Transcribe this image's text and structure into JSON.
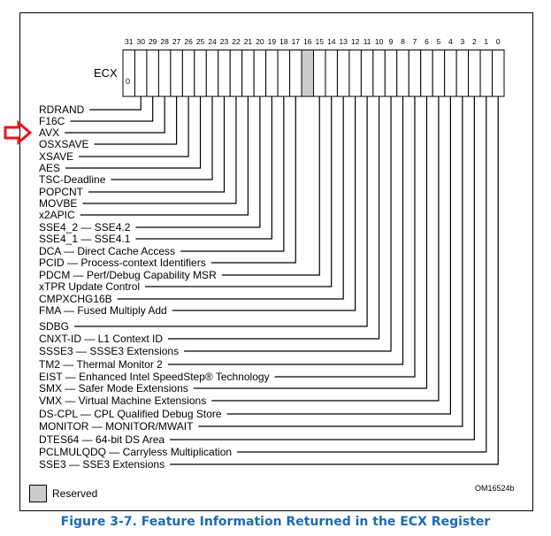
{
  "register": {
    "name": "ECX",
    "bit31_value": "0",
    "reserved_bits": [
      16
    ]
  },
  "bit_numbers": [
    "31",
    "30",
    "29",
    "28",
    "27",
    "26",
    "25",
    "24",
    "23",
    "22",
    "21",
    "20",
    "19",
    "18",
    "17",
    "16",
    "15",
    "14",
    "13",
    "12",
    "11",
    "10",
    "9",
    "8",
    "7",
    "6",
    "5",
    "4",
    "3",
    "2",
    "1",
    "0"
  ],
  "fields": [
    {
      "bit": 30,
      "label": "RDRAND"
    },
    {
      "bit": 29,
      "label": "F16C"
    },
    {
      "bit": 28,
      "label": "AVX",
      "highlighted": true
    },
    {
      "bit": 27,
      "label": "OSXSAVE"
    },
    {
      "bit": 26,
      "label": "XSAVE"
    },
    {
      "bit": 25,
      "label": "AES"
    },
    {
      "bit": 24,
      "label": "TSC-Deadline"
    },
    {
      "bit": 23,
      "label": "POPCNT"
    },
    {
      "bit": 22,
      "label": "MOVBE"
    },
    {
      "bit": 21,
      "label": "x2APIC"
    },
    {
      "bit": 20,
      "label": "SSE4_2 —  SSE4.2"
    },
    {
      "bit": 19,
      "label": "SSE4_1 —  SSE4.1"
    },
    {
      "bit": 18,
      "label": "DCA —  Direct Cache Access"
    },
    {
      "bit": 17,
      "label": "PCID —  Process-context Identifiers"
    },
    {
      "bit": 15,
      "label": "PDCM —  Perf/Debug Capability MSR"
    },
    {
      "bit": 14,
      "label": "xTPR Update Control"
    },
    {
      "bit": 13,
      "label": "CMPXCHG16B"
    },
    {
      "bit": 12,
      "label": "FMA —  Fused Multiply Add"
    },
    {
      "bit": 11,
      "label": "SDBG"
    },
    {
      "bit": 10,
      "label": "CNXT-ID — L1 Context ID"
    },
    {
      "bit": 9,
      "label": "SSSE3 —  SSSE3 Extensions"
    },
    {
      "bit": 8,
      "label": "TM2 — Thermal Monitor 2"
    },
    {
      "bit": 7,
      "label": "EIST —  Enhanced  Intel  SpeedStep®  Technology"
    },
    {
      "bit": 6,
      "label": "SMX — Safer Mode Extensions"
    },
    {
      "bit": 5,
      "label": "VMX — Virtual Machine Extensions"
    },
    {
      "bit": 4,
      "label": "DS-CPL — CPL Qualified Debug Store"
    },
    {
      "bit": 3,
      "label": "MONITOR — MONITOR/MWAIT"
    },
    {
      "bit": 2,
      "label": "DTES64  —  64-bit DS Area"
    },
    {
      "bit": 1,
      "label": "PCLMULQDQ  —  Carryless Multiplication"
    },
    {
      "bit": 0,
      "label": "SSE3  —  SSE3 Extensions"
    }
  ],
  "legend": {
    "reserved_label": "Reserved"
  },
  "figure_id": "OM16524b",
  "caption": "Figure 3-7.  Feature Information Returned in the ECX Register",
  "colors": {
    "reserved_fill": "#cccccc",
    "highlight_arrow": "#e8161b",
    "caption": "#1a6bb5"
  }
}
